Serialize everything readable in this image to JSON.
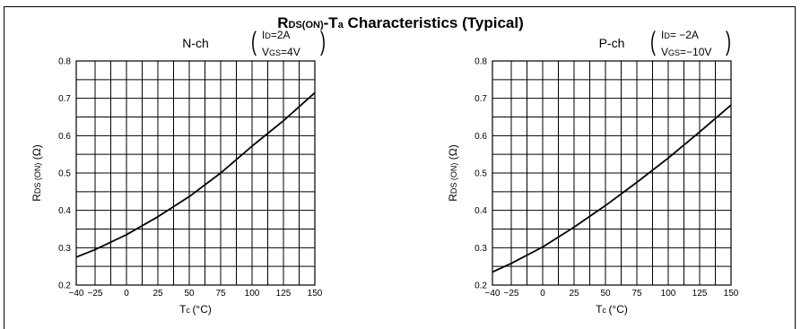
{
  "title": {
    "main_prefix": "R",
    "main_sub": "DS(ON)",
    "main_mid": "-T",
    "main_sub2": "a",
    "main_suffix": " Characteristics (Typical)"
  },
  "chart_data": [
    {
      "type": "line",
      "channel": "N-ch",
      "conditions": {
        "id_prefix": "I",
        "id_sub": "D",
        "id_value": "=2A",
        "vgs_prefix": "V",
        "vgs_sub": "GS",
        "vgs_value": "=4V"
      },
      "ylabel": {
        "prefix": "R",
        "sub": "DS",
        "sub2": "(ON)",
        "unit": "(Ω)"
      },
      "xlabel": {
        "prefix": "T",
        "sub": "c",
        "unit": "(°C)"
      },
      "xlim": [
        -40,
        150
      ],
      "ylim": [
        0.2,
        0.8
      ],
      "xticks": [
        "−40",
        "−25",
        "0",
        "25",
        "50",
        "75",
        "100",
        "125",
        "150"
      ],
      "xtick_values": [
        -40,
        -25,
        0,
        25,
        50,
        75,
        100,
        125,
        150
      ],
      "yticks": [
        "0.2",
        "0.3",
        "0.4",
        "0.5",
        "0.6",
        "0.7",
        "0.8"
      ],
      "ytick_values": [
        0.2,
        0.3,
        0.4,
        0.5,
        0.6,
        0.7,
        0.8
      ],
      "x_grid": [
        -40,
        -25,
        -12.5,
        0,
        12.5,
        25,
        37.5,
        50,
        62.5,
        75,
        87.5,
        100,
        112.5,
        125,
        137.5,
        150
      ],
      "y_grid": [
        0.2,
        0.25,
        0.3,
        0.35,
        0.4,
        0.45,
        0.5,
        0.55,
        0.6,
        0.65,
        0.7,
        0.75,
        0.8
      ],
      "series": [
        {
          "x": [
            -40,
            -25,
            0,
            25,
            50,
            75,
            100,
            125,
            150
          ],
          "y": [
            0.275,
            0.295,
            0.335,
            0.383,
            0.437,
            0.5,
            0.572,
            0.64,
            0.715
          ]
        }
      ]
    },
    {
      "type": "line",
      "channel": "P-ch",
      "conditions": {
        "id_prefix": "I",
        "id_sub": "D",
        "id_value": "= −2A",
        "vgs_prefix": "V",
        "vgs_sub": "GS",
        "vgs_value": "=−10V"
      },
      "ylabel": {
        "prefix": "R",
        "sub": "DS",
        "sub2": "(ON)",
        "unit": "(Ω)"
      },
      "xlabel": {
        "prefix": "T",
        "sub": "c",
        "unit": "(°C)"
      },
      "xlim": [
        -40,
        150
      ],
      "ylim": [
        0.2,
        0.8
      ],
      "xticks": [
        "−40",
        "−25",
        "0",
        "25",
        "50",
        "75",
        "100",
        "125",
        "150"
      ],
      "xtick_values": [
        -40,
        -25,
        0,
        25,
        50,
        75,
        100,
        125,
        150
      ],
      "yticks": [
        "0.2",
        "0.3",
        "0.4",
        "0.5",
        "0.6",
        "0.7",
        "0.8"
      ],
      "ytick_values": [
        0.2,
        0.3,
        0.4,
        0.5,
        0.6,
        0.7,
        0.8
      ],
      "x_grid": [
        -40,
        -25,
        -12.5,
        0,
        12.5,
        25,
        37.5,
        50,
        62.5,
        75,
        87.5,
        100,
        112.5,
        125,
        137.5,
        150
      ],
      "y_grid": [
        0.2,
        0.25,
        0.3,
        0.35,
        0.4,
        0.45,
        0.5,
        0.55,
        0.6,
        0.65,
        0.7,
        0.75,
        0.8
      ],
      "series": [
        {
          "x": [
            -40,
            -25,
            0,
            25,
            50,
            75,
            100,
            125,
            150
          ],
          "y": [
            0.235,
            0.258,
            0.302,
            0.355,
            0.413,
            0.475,
            0.54,
            0.61,
            0.682
          ]
        }
      ]
    }
  ]
}
